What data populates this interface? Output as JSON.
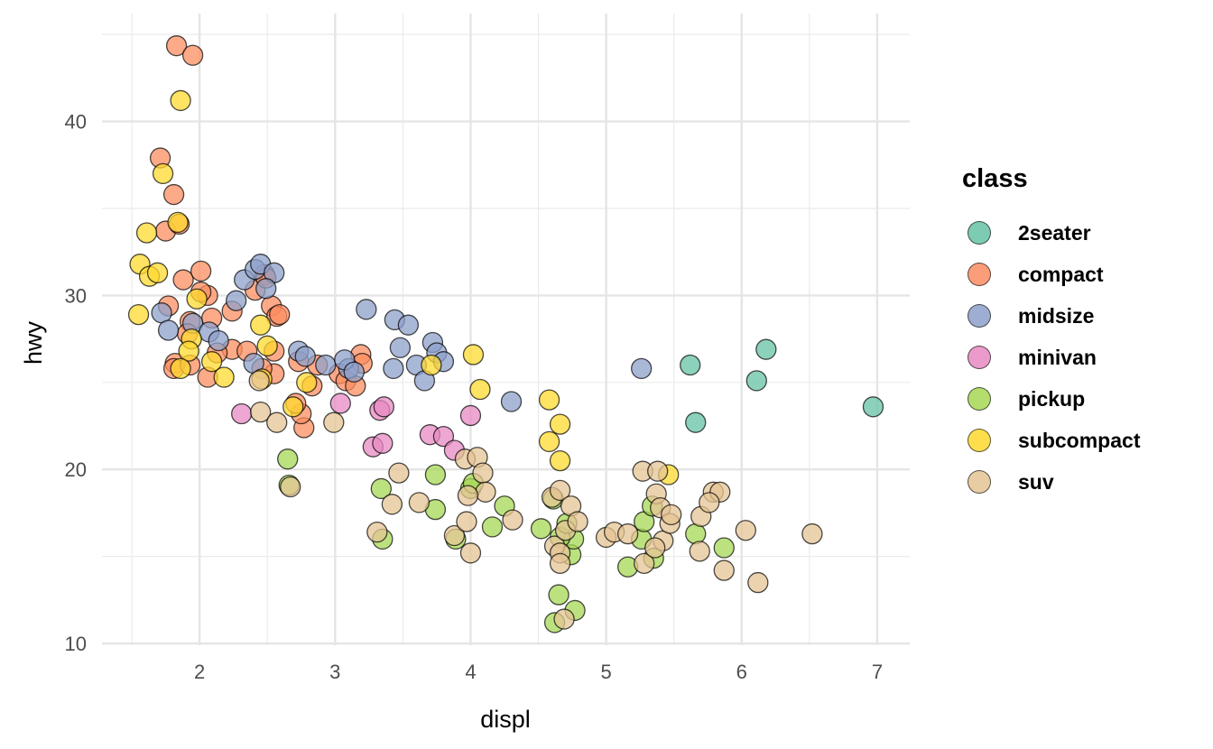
{
  "chart_data": {
    "type": "scatter",
    "xlabel": "displ",
    "ylabel": "hwy",
    "xlim": [
      1.28,
      7.24
    ],
    "ylim": [
      9.9,
      46.2
    ],
    "xticks": [
      2,
      3,
      4,
      5,
      6,
      7
    ],
    "yticks": [
      10,
      20,
      30,
      40
    ],
    "grid": true,
    "legend": {
      "title": "class",
      "placement": "right"
    },
    "series": [
      {
        "name": "2seater",
        "color": "#66C2A5",
        "points": [
          [
            5.62,
            26.0
          ],
          [
            5.66,
            22.7
          ],
          [
            6.11,
            25.1
          ],
          [
            6.18,
            26.9
          ],
          [
            6.97,
            23.6
          ]
        ]
      },
      {
        "name": "compact",
        "color": "#FC8D62",
        "points": [
          [
            1.83,
            44.35
          ],
          [
            1.95,
            43.8
          ],
          [
            1.71,
            37.9
          ],
          [
            1.81,
            35.8
          ],
          [
            1.75,
            33.7
          ],
          [
            1.85,
            34.1
          ],
          [
            1.77,
            29.4
          ],
          [
            1.88,
            30.9
          ],
          [
            2.01,
            31.4
          ],
          [
            1.82,
            26.1
          ],
          [
            1.81,
            25.8
          ],
          [
            1.93,
            26.0
          ],
          [
            2.06,
            25.3
          ],
          [
            1.93,
            28.5
          ],
          [
            2.06,
            30.0
          ],
          [
            2.09,
            28.7
          ],
          [
            2.24,
            26.9
          ],
          [
            2.24,
            29.1
          ],
          [
            2.35,
            26.8
          ],
          [
            2.41,
            30.3
          ],
          [
            2.48,
            31.2
          ],
          [
            2.49,
            31.0
          ],
          [
            2.53,
            29.4
          ],
          [
            2.57,
            28.8
          ],
          [
            2.59,
            28.9
          ],
          [
            2.55,
            26.8
          ],
          [
            2.55,
            25.5
          ],
          [
            2.46,
            25.8
          ],
          [
            2.73,
            26.2
          ],
          [
            2.77,
            22.4
          ],
          [
            2.75,
            23.2
          ],
          [
            2.71,
            23.8
          ],
          [
            2.83,
            24.8
          ],
          [
            2.87,
            26.0
          ],
          [
            3.03,
            25.5
          ],
          [
            3.08,
            25.1
          ],
          [
            3.15,
            24.8
          ],
          [
            3.19,
            26.6
          ],
          [
            3.2,
            26.1
          ],
          [
            2.13,
            26.7
          ],
          [
            2.01,
            30.2
          ],
          [
            1.91,
            27.8
          ]
        ]
      },
      {
        "name": "midsize",
        "color": "#8DA0CB",
        "points": [
          [
            1.72,
            29.0
          ],
          [
            1.77,
            28.0
          ],
          [
            1.95,
            28.4
          ],
          [
            2.07,
            27.9
          ],
          [
            2.14,
            27.4
          ],
          [
            2.27,
            29.7
          ],
          [
            2.33,
            30.9
          ],
          [
            2.41,
            31.5
          ],
          [
            2.45,
            31.8
          ],
          [
            2.55,
            31.3
          ],
          [
            2.49,
            30.4
          ],
          [
            2.4,
            26.1
          ],
          [
            2.73,
            26.8
          ],
          [
            2.78,
            26.5
          ],
          [
            2.93,
            26.0
          ],
          [
            3.1,
            25.8
          ],
          [
            3.07,
            26.3
          ],
          [
            3.14,
            25.6
          ],
          [
            3.23,
            29.2
          ],
          [
            3.44,
            28.6
          ],
          [
            3.54,
            28.3
          ],
          [
            3.48,
            27.0
          ],
          [
            3.43,
            25.8
          ],
          [
            3.6,
            26.0
          ],
          [
            3.66,
            25.1
          ],
          [
            3.72,
            27.3
          ],
          [
            3.75,
            26.7
          ],
          [
            3.8,
            26.2
          ],
          [
            4.3,
            23.9
          ],
          [
            5.26,
            25.8
          ]
        ]
      },
      {
        "name": "minivan",
        "color": "#E78AC3",
        "points": [
          [
            2.31,
            23.2
          ],
          [
            3.04,
            23.8
          ],
          [
            3.28,
            21.3
          ],
          [
            3.35,
            21.5
          ],
          [
            3.33,
            23.4
          ],
          [
            3.36,
            23.6
          ],
          [
            3.7,
            22.0
          ],
          [
            3.8,
            21.9
          ],
          [
            3.88,
            21.1
          ],
          [
            4.0,
            23.1
          ]
        ]
      },
      {
        "name": "pickup",
        "color": "#A6D854",
        "points": [
          [
            2.65,
            20.6
          ],
          [
            2.66,
            19.1
          ],
          [
            3.34,
            18.9
          ],
          [
            3.35,
            16.0
          ],
          [
            3.74,
            19.7
          ],
          [
            3.74,
            17.7
          ],
          [
            3.89,
            16.0
          ],
          [
            4.0,
            18.9
          ],
          [
            4.02,
            19.2
          ],
          [
            4.16,
            16.7
          ],
          [
            4.25,
            17.9
          ],
          [
            4.52,
            16.6
          ],
          [
            4.61,
            18.3
          ],
          [
            4.65,
            12.8
          ],
          [
            4.62,
            11.2
          ],
          [
            4.77,
            11.9
          ],
          [
            4.74,
            15.1
          ],
          [
            4.76,
            16.0
          ],
          [
            4.66,
            16.1
          ],
          [
            5.16,
            14.4
          ],
          [
            5.26,
            16.0
          ],
          [
            5.28,
            17.0
          ],
          [
            5.34,
            17.9
          ],
          [
            5.35,
            14.9
          ],
          [
            5.66,
            16.3
          ],
          [
            5.87,
            15.5
          ],
          [
            4.71,
            16.9
          ]
        ]
      },
      {
        "name": "subcompact",
        "color": "#FFD92F",
        "points": [
          [
            1.61,
            33.6
          ],
          [
            1.56,
            31.8
          ],
          [
            1.63,
            31.1
          ],
          [
            1.69,
            31.3
          ],
          [
            1.55,
            28.9
          ],
          [
            1.73,
            37.0
          ],
          [
            1.86,
            41.2
          ],
          [
            1.84,
            34.2
          ],
          [
            1.98,
            29.8
          ],
          [
            1.94,
            27.5
          ],
          [
            1.92,
            26.8
          ],
          [
            2.09,
            26.2
          ],
          [
            2.18,
            25.3
          ],
          [
            2.45,
            28.3
          ],
          [
            2.5,
            27.1
          ],
          [
            2.46,
            25.2
          ],
          [
            2.69,
            23.6
          ],
          [
            2.79,
            25.0
          ],
          [
            3.71,
            26.0
          ],
          [
            4.02,
            26.6
          ],
          [
            4.07,
            24.6
          ],
          [
            4.58,
            24.0
          ],
          [
            4.66,
            22.6
          ],
          [
            4.58,
            21.6
          ],
          [
            4.66,
            20.5
          ],
          [
            5.46,
            19.7
          ],
          [
            1.86,
            25.8
          ]
        ]
      },
      {
        "name": "suv",
        "color": "#E5C494",
        "points": [
          [
            2.45,
            23.3
          ],
          [
            2.44,
            25.1
          ],
          [
            2.57,
            22.7
          ],
          [
            2.67,
            19.0
          ],
          [
            2.99,
            22.7
          ],
          [
            3.31,
            16.4
          ],
          [
            3.42,
            18.0
          ],
          [
            3.47,
            19.8
          ],
          [
            3.62,
            18.1
          ],
          [
            3.88,
            16.2
          ],
          [
            3.96,
            20.6
          ],
          [
            3.97,
            17.0
          ],
          [
            4.0,
            15.2
          ],
          [
            4.05,
            20.7
          ],
          [
            4.09,
            19.8
          ],
          [
            4.11,
            18.7
          ],
          [
            3.98,
            18.5
          ],
          [
            4.31,
            17.1
          ],
          [
            4.6,
            18.4
          ],
          [
            4.62,
            15.6
          ],
          [
            4.66,
            18.8
          ],
          [
            4.66,
            15.2
          ],
          [
            4.69,
            11.4
          ],
          [
            4.74,
            17.9
          ],
          [
            4.7,
            16.5
          ],
          [
            4.79,
            17.0
          ],
          [
            4.66,
            14.6
          ],
          [
            5.0,
            16.1
          ],
          [
            5.06,
            16.4
          ],
          [
            5.16,
            16.3
          ],
          [
            5.28,
            14.6
          ],
          [
            5.27,
            19.9
          ],
          [
            5.38,
            19.9
          ],
          [
            5.37,
            18.6
          ],
          [
            5.4,
            17.8
          ],
          [
            5.42,
            15.9
          ],
          [
            5.47,
            16.9
          ],
          [
            5.48,
            17.4
          ],
          [
            5.7,
            17.3
          ],
          [
            5.69,
            15.3
          ],
          [
            5.79,
            18.7
          ],
          [
            5.84,
            18.7
          ],
          [
            5.76,
            18.1
          ],
          [
            5.87,
            14.2
          ],
          [
            6.03,
            16.5
          ],
          [
            6.12,
            13.5
          ],
          [
            6.52,
            16.3
          ],
          [
            5.36,
            15.5
          ]
        ]
      }
    ]
  }
}
